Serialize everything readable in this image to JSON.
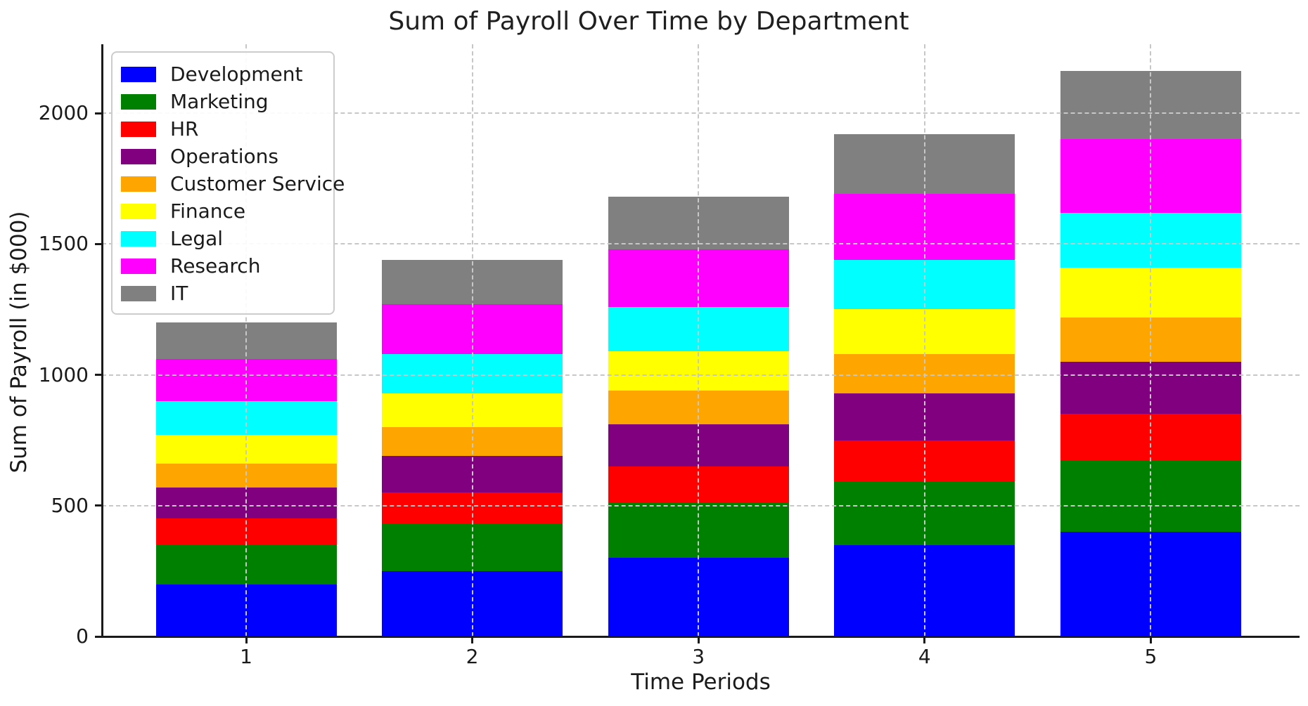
{
  "chart_data": {
    "type": "bar",
    "stacked": true,
    "title": "Sum of Payroll Over Time by Department",
    "xlabel": "Time Periods",
    "ylabel": "Sum of Payroll (in $000)",
    "categories": [
      "1",
      "2",
      "3",
      "4",
      "5"
    ],
    "series": [
      {
        "name": "Development",
        "color": "#0000ff",
        "values": [
          200,
          250,
          300,
          350,
          400
        ]
      },
      {
        "name": "Marketing",
        "color": "#008000",
        "values": [
          150,
          180,
          210,
          240,
          270
        ]
      },
      {
        "name": "HR",
        "color": "#ff0000",
        "values": [
          100,
          120,
          140,
          160,
          180
        ]
      },
      {
        "name": "Operations",
        "color": "#800080",
        "values": [
          120,
          140,
          160,
          180,
          200
        ]
      },
      {
        "name": "Customer Service",
        "color": "#ffa500",
        "values": [
          90,
          110,
          130,
          150,
          170
        ]
      },
      {
        "name": "Finance",
        "color": "#ffff00",
        "values": [
          110,
          130,
          150,
          170,
          190
        ]
      },
      {
        "name": "Legal",
        "color": "#00ffff",
        "values": [
          130,
          150,
          170,
          190,
          210
        ]
      },
      {
        "name": "Research",
        "color": "#ff00ff",
        "values": [
          160,
          190,
          220,
          250,
          280
        ]
      },
      {
        "name": "IT",
        "color": "#808080",
        "values": [
          140,
          170,
          200,
          230,
          260
        ]
      }
    ],
    "stack_totals": [
      1200,
      1440,
      1680,
      1920,
      2160
    ],
    "yticks": [
      0,
      500,
      1000,
      1500,
      2000
    ],
    "ylim": [
      0,
      2263
    ],
    "grid": true,
    "grid_style": "dashed",
    "grid_color": "#c7c7c7",
    "legend_position": "upper left",
    "legend_entries": [
      "Development",
      "Marketing",
      "HR",
      "Operations",
      "Customer Service",
      "Finance",
      "Legal",
      "Research",
      "IT"
    ]
  },
  "colors": {
    "background": "#ffffff",
    "text": "#1a1a1a",
    "spine": "#1a1a1a"
  }
}
